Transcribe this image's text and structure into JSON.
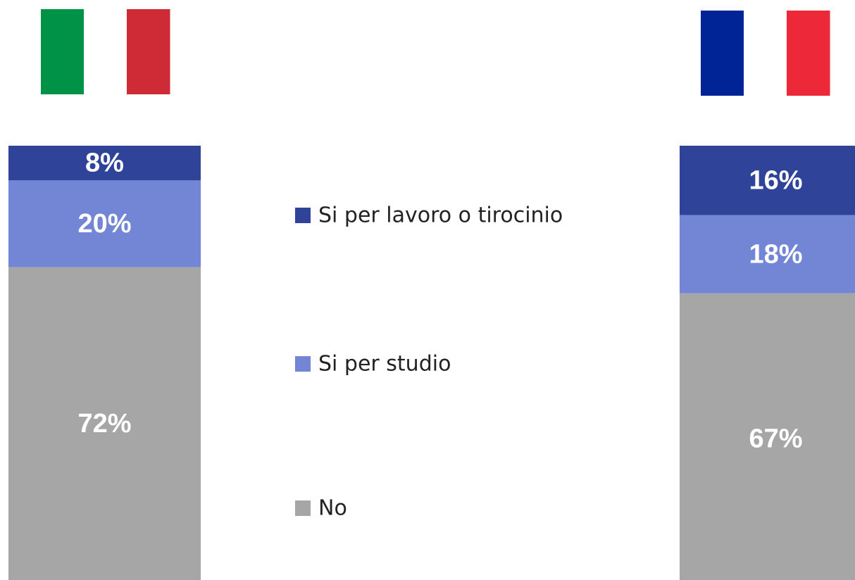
{
  "chart_data": {
    "type": "bar",
    "stacked": true,
    "percent_scale": [
      0,
      100
    ],
    "categories": [
      "Italy",
      "France"
    ],
    "category_icons": [
      "italy-flag-icon",
      "france-flag-icon"
    ],
    "series": [
      {
        "name": "Si per lavoro o tirocinio",
        "color": "#2f4399",
        "values": [
          8,
          16
        ],
        "labels": [
          "8%",
          "16%"
        ]
      },
      {
        "name": "Si per studio",
        "color": "#7386d5",
        "values": [
          20,
          18
        ],
        "labels": [
          "20%",
          "18%"
        ]
      },
      {
        "name": "No",
        "color": "#a6a6a6",
        "values": [
          72,
          67
        ],
        "labels": [
          "72%",
          "67%"
        ]
      }
    ],
    "legend_position": "center",
    "legend_order": [
      "Si per lavoro o tirocinio",
      "Si per studio",
      "No"
    ]
  },
  "flags": {
    "italy": {
      "colors": [
        "#009246",
        "#ffffff",
        "#ce2b37"
      ]
    },
    "france": {
      "colors": [
        "#002395",
        "#ffffff",
        "#ed2939"
      ]
    }
  }
}
